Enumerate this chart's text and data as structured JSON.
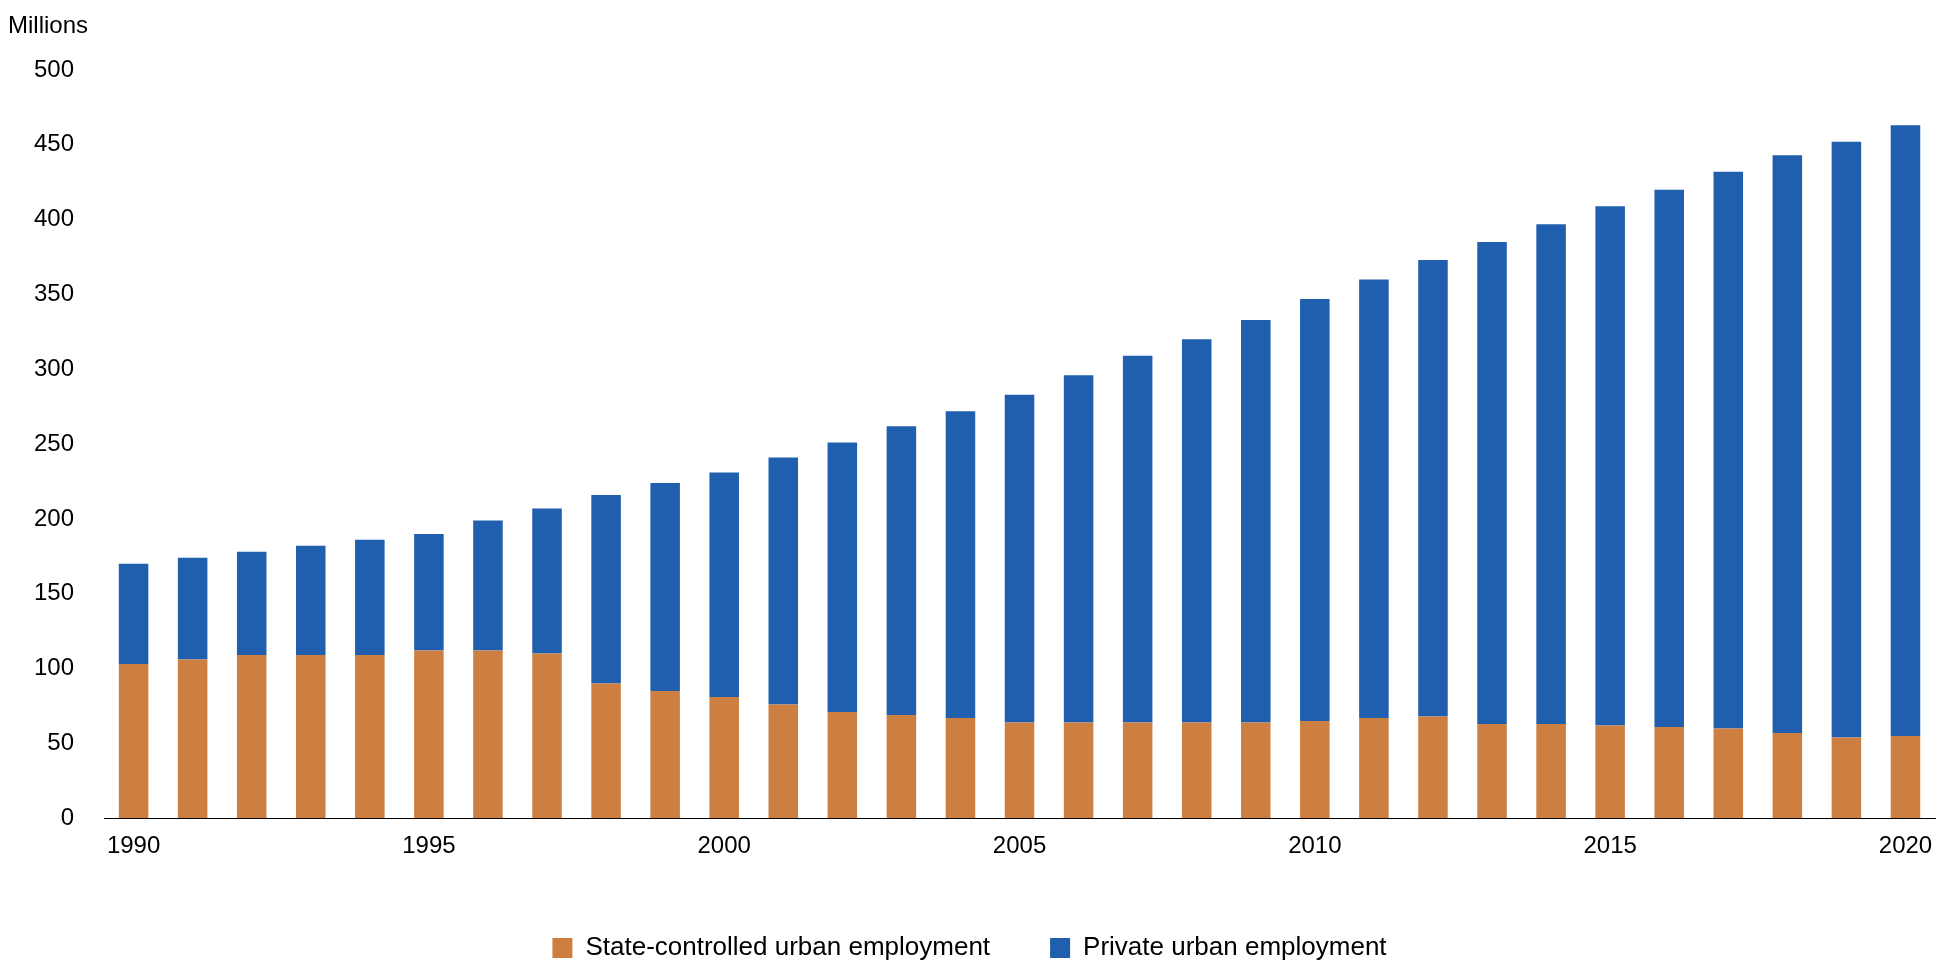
{
  "chart_data": {
    "type": "bar",
    "stacked": true,
    "ylabel": "Millions",
    "categories": [
      "1990",
      null,
      null,
      null,
      null,
      "1995",
      null,
      null,
      null,
      null,
      "2000",
      null,
      null,
      null,
      null,
      "2005",
      null,
      null,
      null,
      null,
      "2010",
      null,
      null,
      null,
      null,
      "2015",
      null,
      null,
      null,
      null,
      "2020"
    ],
    "series": [
      {
        "name": "State-controlled urban employment",
        "color": "#cd7f42",
        "values": [
          103,
          106,
          109,
          109,
          109,
          112,
          112,
          110,
          90,
          85,
          81,
          76,
          71,
          69,
          67,
          64,
          64,
          64,
          64,
          64,
          65,
          67,
          68,
          63,
          63,
          62,
          61,
          60,
          57,
          54,
          55
        ]
      },
      {
        "name": "Private urban employment",
        "color": "#1f5fae",
        "values": [
          67,
          68,
          69,
          73,
          77,
          78,
          87,
          97,
          126,
          139,
          150,
          165,
          180,
          193,
          205,
          219,
          232,
          245,
          256,
          269,
          282,
          293,
          305,
          322,
          334,
          347,
          359,
          372,
          386,
          398,
          408
        ]
      }
    ],
    "ylim": [
      0,
      500
    ],
    "yticks": [
      0,
      50,
      100,
      150,
      200,
      250,
      300,
      350,
      400,
      450,
      500
    ],
    "grid": false,
    "legend": "bottom"
  }
}
